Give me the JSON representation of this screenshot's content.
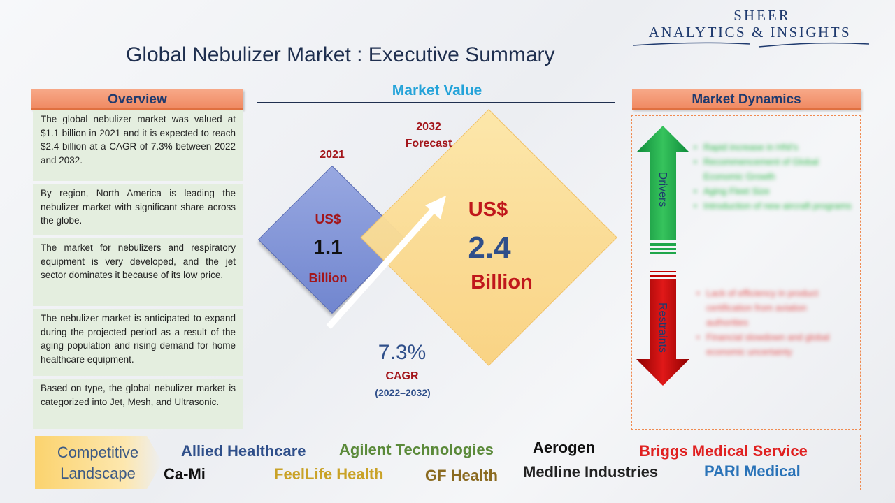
{
  "brand": {
    "line1": "SHEER",
    "line2": "ANALYTICS & INSIGHTS"
  },
  "title": "Global Nebulizer Market : Executive Summary",
  "overview": {
    "header": "Overview",
    "paragraphs": [
      "The global nebulizer market was valued at $1.1 billion in 2021 and it is expected to reach $2.4 billion at a CAGR of 7.3% between 2022 and 2032.",
      "By region, North America is leading the nebulizer market with significant share across the globe.",
      "The market for nebulizers and respiratory equipment is very developed, and the jet sector dominates it because of its low price.",
      "The nebulizer market is anticipated to expand during the projected period as a result of the aging population and rising demand for home healthcare equipment.",
      "Based on type, the global nebulizer market is categorized into Jet, Mesh, and Ultrasonic."
    ]
  },
  "market_value": {
    "header": "Market Value",
    "base": {
      "year": "2021",
      "currency": "US$",
      "value": "1.1",
      "unit": "Billion"
    },
    "forecast": {
      "year": "2032",
      "sub": "Forecast",
      "currency": "US$",
      "value": "2.4",
      "unit": "Billion"
    },
    "cagr": {
      "value": "7.3%",
      "label": "CAGR",
      "period": "(2022–2032)"
    },
    "colors": {
      "base_diamond": "#8396d8",
      "forecast_diamond": "#fbd98f",
      "accent_red": "#c0171b",
      "accent_blue": "#2f4f8a"
    }
  },
  "market_dynamics": {
    "header": "Market Dynamics",
    "drivers_label": "Drivers",
    "restraints_label": "Restraints",
    "drivers": [
      "Rapid increase in HNI's",
      "Recommencement of Global Economic Growth",
      "Aging Fleet Size",
      "Introduction of new aircraft programs"
    ],
    "restraints": [
      "Lack of efficiency in product certification from aviation authorities",
      "Financial slowdown and global economic uncertainty"
    ],
    "colors": {
      "drivers": "#1fa64a",
      "restraints": "#c00000"
    }
  },
  "competitive_landscape": {
    "label_line1": "Competitive",
    "label_line2": "Landscape",
    "companies": [
      {
        "name": "Allied Healthcare",
        "color": "#2f4f8a"
      },
      {
        "name": "Agilent Technologies",
        "color": "#5b8a3a"
      },
      {
        "name": "Aerogen",
        "color": "#111111"
      },
      {
        "name": "Briggs Medical Service",
        "color": "#e02020"
      },
      {
        "name": "Ca-Mi",
        "color": "#111111"
      },
      {
        "name": "FeelLife Health",
        "color": "#c9a227"
      },
      {
        "name": "GF Health",
        "color": "#8a6a20"
      },
      {
        "name": "Medline Industries",
        "color": "#222222"
      },
      {
        "name": "PARI Medical",
        "color": "#2a73b8"
      }
    ]
  }
}
